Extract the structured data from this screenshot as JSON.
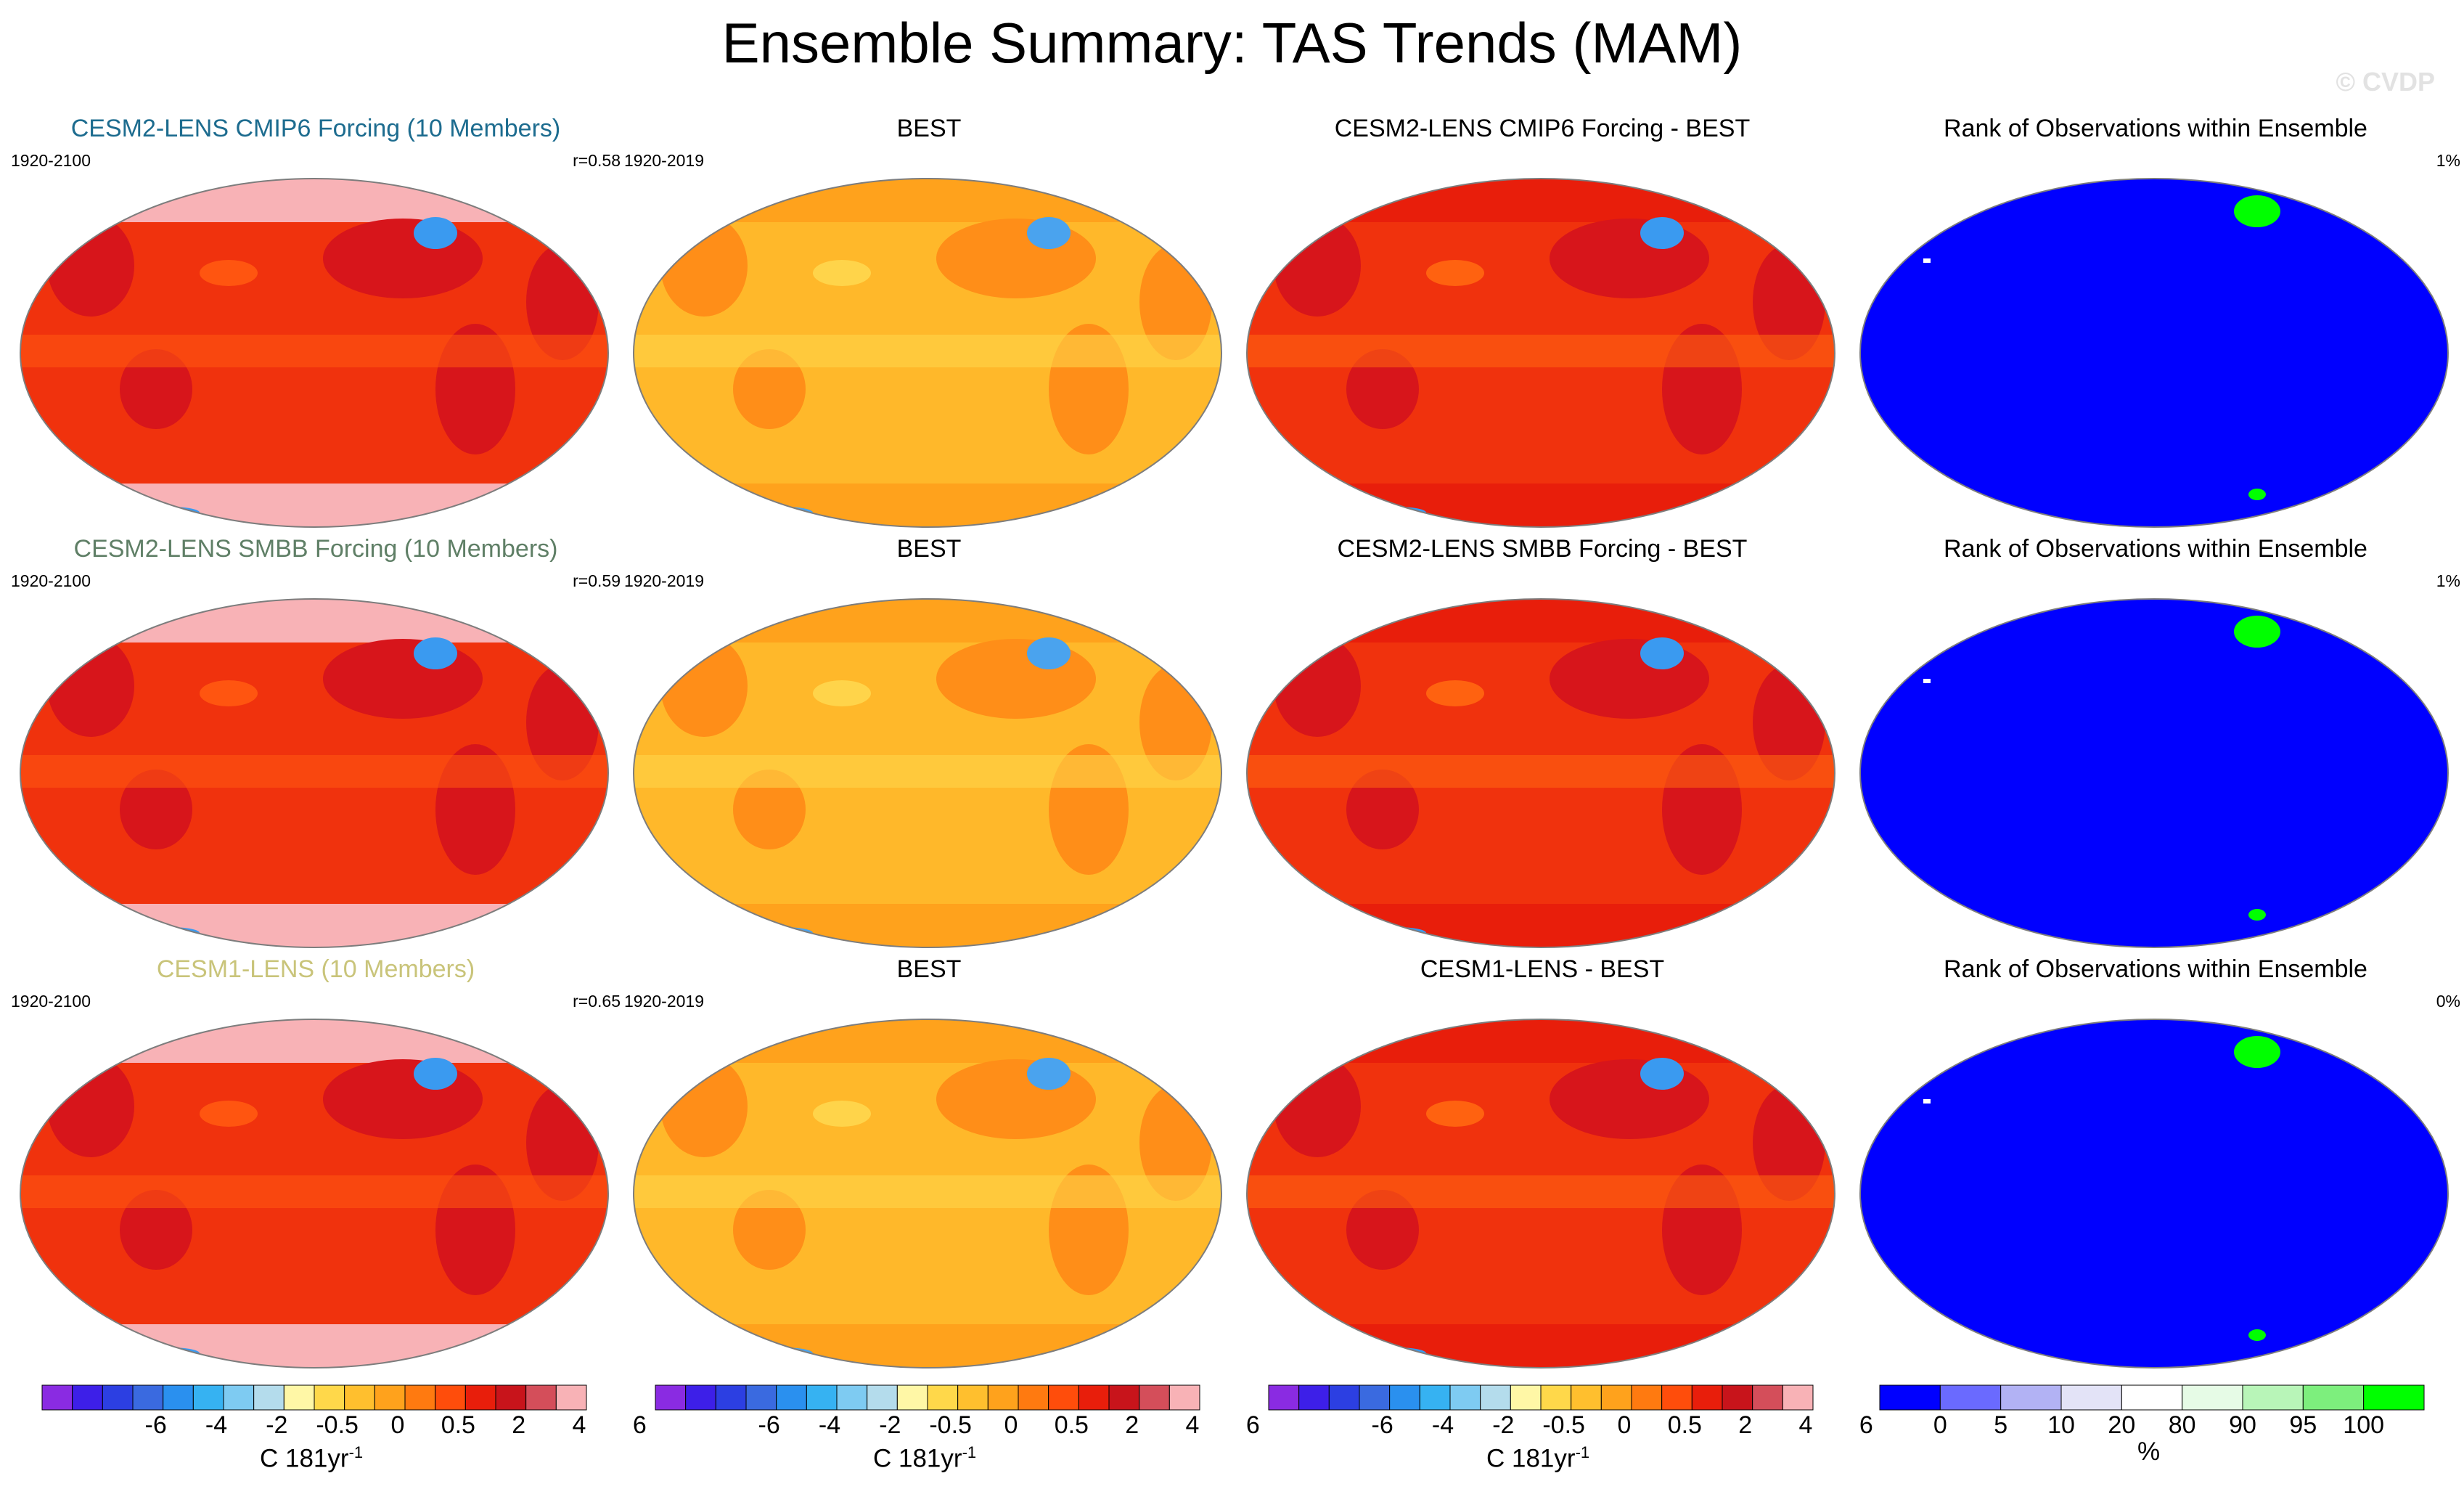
{
  "title": "Ensemble Summary: TAS Trends (MAM)",
  "watermark": "© CVDP",
  "rows": [
    {
      "model": {
        "title": "CESM2-LENS CMIP6 Forcing (10 Members)",
        "title_color": "#1d6c8f",
        "period": "1920-2100",
        "r": "r=0.58"
      },
      "obs": {
        "title": "BEST",
        "period": "1920-2019"
      },
      "diff": {
        "title": "CESM2-LENS CMIP6 Forcing - BEST"
      },
      "rank": {
        "title": "Rank of Observations within Ensemble",
        "pct": "1%"
      }
    },
    {
      "model": {
        "title": "CESM2-LENS SMBB Forcing (10 Members)",
        "title_color": "#5f7f66",
        "period": "1920-2100",
        "r": "r=0.59"
      },
      "obs": {
        "title": "BEST",
        "period": "1920-2019"
      },
      "diff": {
        "title": "CESM2-LENS SMBB Forcing - BEST"
      },
      "rank": {
        "title": "Rank of Observations within Ensemble",
        "pct": "1%"
      }
    },
    {
      "model": {
        "title": "CESM1-LENS (10 Members)",
        "title_color": "#c9c47a",
        "period": "1920-2100",
        "r": "r=0.65"
      },
      "obs": {
        "title": "BEST",
        "period": "1920-2019"
      },
      "diff": {
        "title": "CESM1-LENS - BEST"
      },
      "rank": {
        "title": "Rank of Observations within Ensemble",
        "pct": "0%"
      }
    }
  ],
  "colorbar_trend": {
    "colors": [
      "#8a2be2",
      "#3d1fe8",
      "#2c3fe2",
      "#3a6ae0",
      "#2a90ef",
      "#36b2f2",
      "#7ecbf2",
      "#b4dcec",
      "#fff7a6",
      "#ffd84a",
      "#ffbf2e",
      "#ffa21c",
      "#ff7a10",
      "#ff4d0b",
      "#e81e0b",
      "#c8141b",
      "#d44e5a",
      "#f8b2b6"
    ],
    "ticks": [
      "-6",
      "-4",
      "-2",
      "-0.5",
      "0",
      "0.5",
      "2",
      "4",
      "6"
    ],
    "unit": "C 181yr",
    "unit_sup": "-1"
  },
  "colorbar_rank": {
    "colors": [
      "#0000ff",
      "#6a6aff",
      "#b2b2f4",
      "#e3e3f7",
      "#ffffff",
      "#e6fbe6",
      "#b8f5b8",
      "#7def7d",
      "#00ff00"
    ],
    "ticks": [
      "0",
      "5",
      "10",
      "20",
      "80",
      "90",
      "95",
      "100"
    ],
    "unit": "%"
  }
}
